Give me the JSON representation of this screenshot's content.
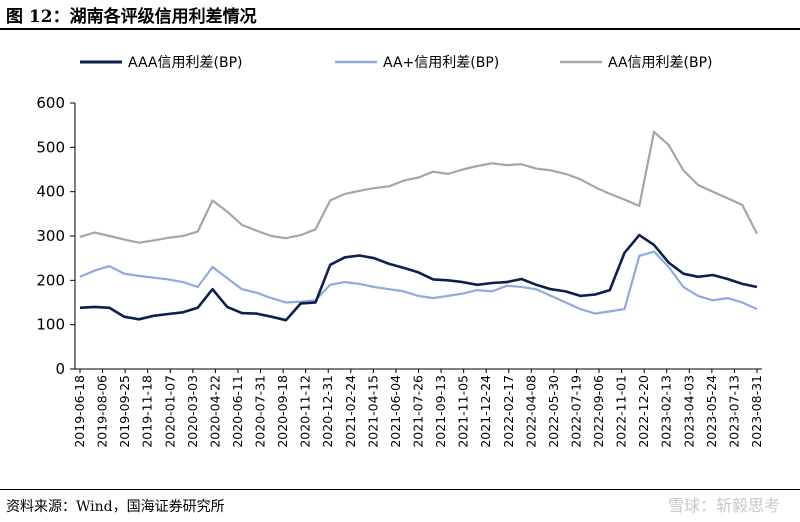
{
  "title": "图 12：湖南各评级信用利差情况",
  "source": "资料来源：Wind，国海证券研究所",
  "watermark": "雪球：斩毅思考",
  "chart_data": {
    "type": "line",
    "title": "",
    "xlabel": "",
    "ylabel": "",
    "ylim": [
      0,
      600
    ],
    "yticks": [
      0,
      100,
      200,
      300,
      400,
      500,
      600
    ],
    "grid": false,
    "legend_position": "top",
    "x_tick_labels": [
      "2019-06-18",
      "2019-08-06",
      "2019-09-25",
      "2019-11-18",
      "2020-01-07",
      "2020-03-03",
      "2020-04-22",
      "2020-06-11",
      "2020-07-31",
      "2020-09-18",
      "2020-11-12",
      "2020-12-31",
      "2021-02-24",
      "2021-04-15",
      "2021-06-04",
      "2021-07-26",
      "2021-09-13",
      "2021-11-05",
      "2021-12-24",
      "2022-02-17",
      "2022-04-08",
      "2022-05-30",
      "2022-07-19",
      "2022-09-06",
      "2022-11-01",
      "2022-12-20",
      "2023-02-13",
      "2023-04-03",
      "2023-05-24",
      "2023-07-13",
      "2023-08-31"
    ],
    "series": [
      {
        "name": "AAA信用利差(BP)",
        "color": "#0d1f4f",
        "values": [
          138,
          140,
          138,
          118,
          112,
          120,
          124,
          128,
          138,
          180,
          140,
          126,
          125,
          118,
          110,
          148,
          150,
          235,
          252,
          256,
          250,
          237,
          228,
          218,
          202,
          200,
          196,
          190,
          194,
          196,
          203,
          190,
          180,
          175,
          165,
          168,
          178,
          262,
          302,
          280,
          240,
          215,
          208,
          212,
          203,
          192,
          185
        ]
      },
      {
        "name": "AA+信用利差(BP)",
        "color": "#8faadc",
        "values": [
          208,
          222,
          232,
          215,
          210,
          206,
          202,
          196,
          185,
          230,
          205,
          180,
          172,
          160,
          150,
          152,
          155,
          190,
          196,
          192,
          185,
          180,
          175,
          165,
          160,
          165,
          170,
          178,
          175,
          188,
          185,
          180,
          165,
          150,
          135,
          125,
          130,
          135,
          255,
          265,
          230,
          185,
          165,
          155,
          160,
          150,
          135
        ]
      },
      {
        "name": "AA信用利差(BP)",
        "color": "#a6a6a6",
        "values": [
          298,
          308,
          300,
          292,
          285,
          290,
          296,
          300,
          310,
          380,
          355,
          325,
          312,
          300,
          295,
          302,
          315,
          380,
          395,
          402,
          408,
          412,
          425,
          432,
          445,
          440,
          450,
          458,
          464,
          460,
          462,
          452,
          448,
          440,
          428,
          410,
          395,
          382,
          368,
          535,
          505,
          448,
          415,
          400,
          385,
          370,
          305
        ]
      }
    ]
  }
}
